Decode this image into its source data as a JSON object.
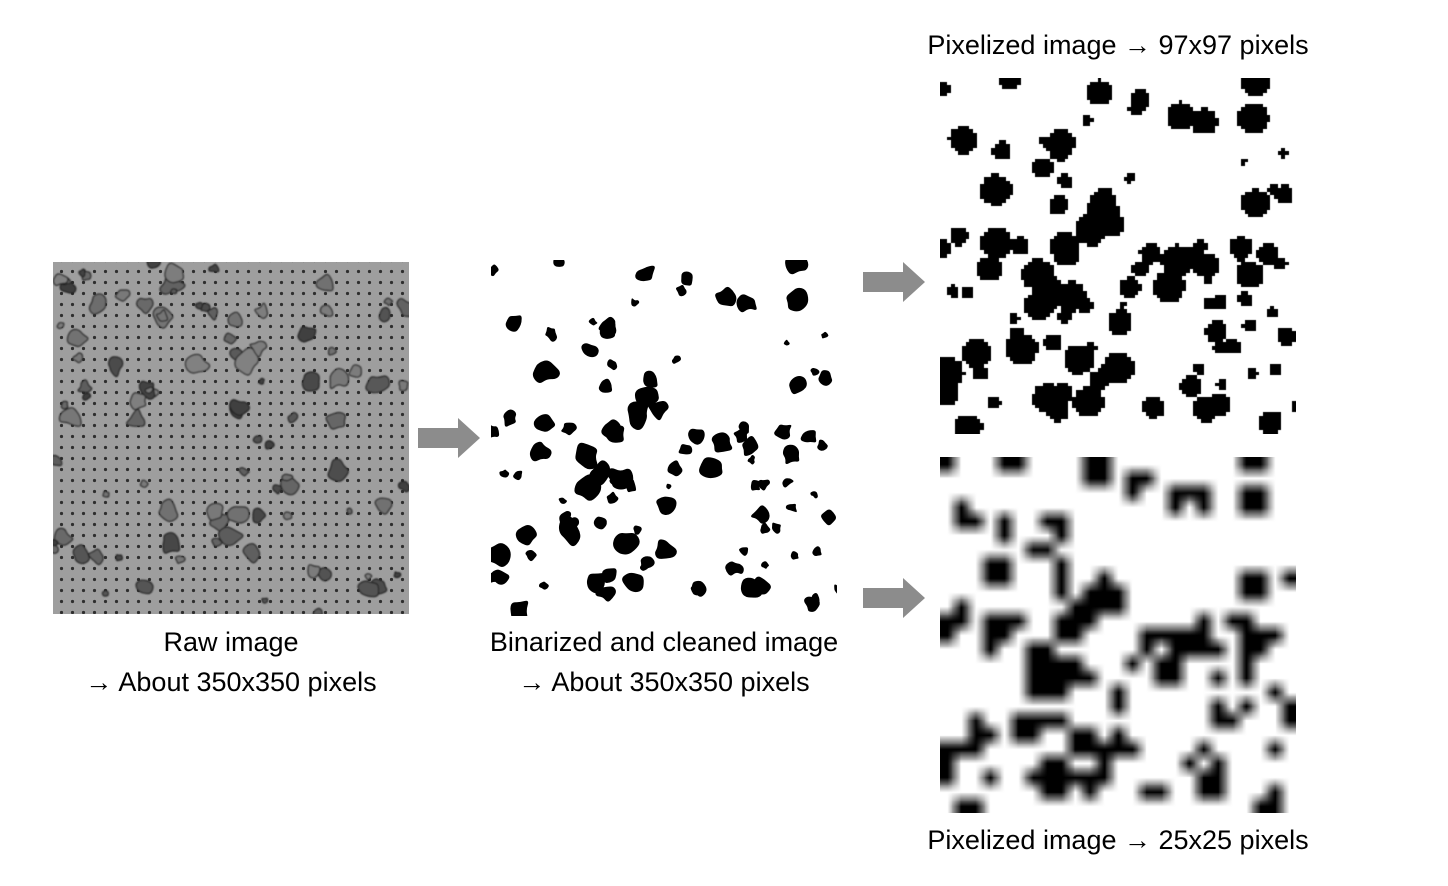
{
  "panels": {
    "raw": {
      "caption_line1": "Raw image",
      "caption_line2": "→ About 350x350 pixels"
    },
    "binarized": {
      "caption_line1": "Binarized and cleaned image",
      "caption_line2": "→ About 350x350 pixels"
    },
    "pixelized_97": {
      "caption": "Pixelized image → 97x97 pixels"
    },
    "pixelized_25": {
      "caption": "Pixelized image → 25x25 pixels"
    }
  },
  "colors": {
    "arrow": "#8c8c8c",
    "raw_background": "#9e9e9e",
    "particle": "#000000",
    "background": "#ffffff"
  }
}
